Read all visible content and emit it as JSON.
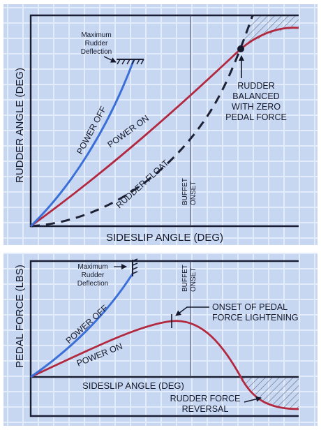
{
  "colors": {
    "panel_bg": "#c7d7f2",
    "grid_light": "#e3ecfb",
    "frame": "#1a1e33",
    "power_off": "#3b6fd8",
    "power_on": "#b2283f",
    "rudder_float": "#1d2135",
    "text": "#14182a"
  },
  "top_chart": {
    "y_axis_label": "RUDDER ANGLE (DEG)",
    "x_axis_label": "SIDESLIP ANGLE (DEG)",
    "max_deflection_label": [
      "Maximum",
      "Rudder",
      "Deflection"
    ],
    "curve_power_off": "POWER OFF",
    "curve_power_on": "POWER ON",
    "curve_rudder_float": "RUDDER FLOAT",
    "buffet_onset": [
      "BUFFET",
      "ONSET"
    ],
    "balanced_note": [
      "RUDDER",
      "BALANCED",
      "WITH ZERO",
      "PEDAL FORCE"
    ]
  },
  "bottom_chart": {
    "y_axis_label": "PEDAL FORCE (LBS)",
    "x_axis_label": "SIDESLIP ANGLE (DEG)",
    "max_deflection_label": [
      "Maximum",
      "Rudder",
      "Deflection"
    ],
    "curve_power_off": "POWER OFF",
    "curve_power_on": "POWER ON",
    "buffet_onset": [
      "BUFFET",
      "ONSET"
    ],
    "lightening_note": [
      "ONSET OF PEDAL",
      "FORCE LIGHTENING"
    ],
    "reversal_note": [
      "RUDDER FORCE",
      "REVERSAL"
    ]
  }
}
